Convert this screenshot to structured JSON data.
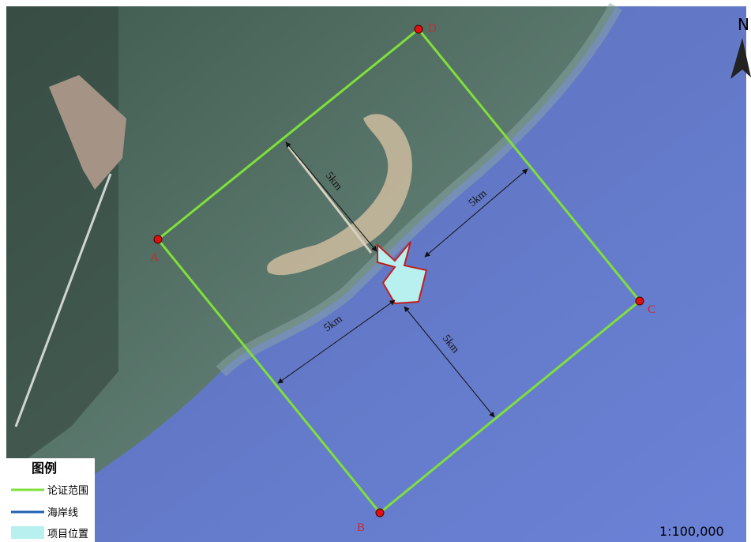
{
  "map": {
    "points": [
      "A",
      "B",
      "C",
      "D"
    ],
    "distances": [
      "5km",
      "5km",
      "5km",
      "5km"
    ],
    "north": "N",
    "scale": "1:100,000"
  },
  "legend": {
    "title": "图例",
    "items": [
      "论证范围",
      "海岸线",
      "项目位置"
    ]
  }
}
